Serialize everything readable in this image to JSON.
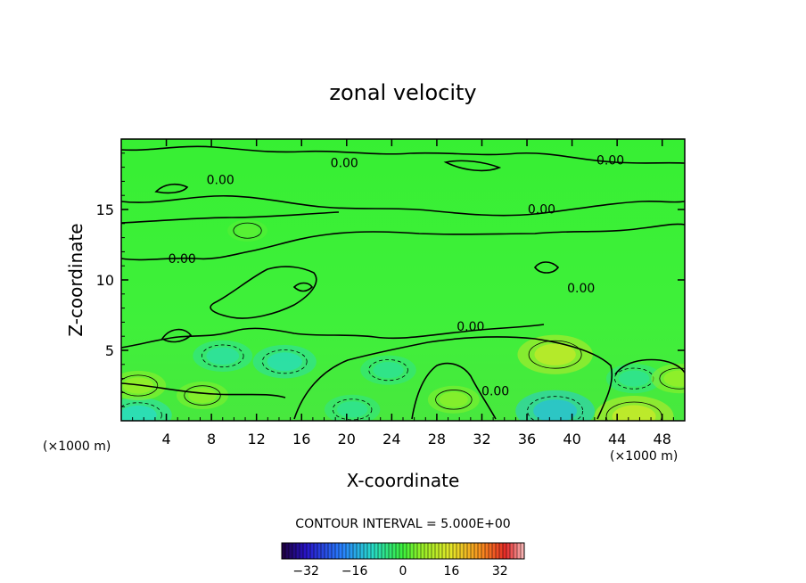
{
  "chart_data": {
    "type": "heatmap",
    "title": "zonal velocity",
    "xlabel": "X-coordinate",
    "ylabel": "Z-coordinate",
    "x_unit_left": "(×1000 m)",
    "x_unit_right": "(×1000 m)",
    "xlim": [
      0,
      50
    ],
    "ylim": [
      0,
      20
    ],
    "x_ticks": [
      4,
      8,
      12,
      16,
      20,
      24,
      28,
      32,
      36,
      40,
      44,
      48
    ],
    "y_ticks": [
      5,
      10,
      15
    ],
    "contour_interval_label": "CONTOUR INTERVAL = 5.000E+00",
    "contour_labels": [
      {
        "text": "0.00",
        "x": 19.8,
        "y": 18.0
      },
      {
        "text": "0.00",
        "x": 8.8,
        "y": 16.8
      },
      {
        "text": "0.00",
        "x": 43.4,
        "y": 18.2
      },
      {
        "text": "0.00",
        "x": 37.3,
        "y": 14.7
      },
      {
        "text": "0.00",
        "x": 5.4,
        "y": 11.2
      },
      {
        "text": "0.00",
        "x": 40.8,
        "y": 9.1
      },
      {
        "text": "0.00",
        "x": 31.0,
        "y": 6.4
      },
      {
        "text": "0.00",
        "x": 33.2,
        "y": 1.8
      }
    ],
    "colorbar": {
      "min": -40,
      "max": 40,
      "ticks": [
        -32,
        -16,
        0,
        16,
        32
      ],
      "tick_labels": [
        "−32",
        "−16",
        "0",
        "16",
        "32"
      ]
    },
    "features": [
      {
        "kind": "neg",
        "x": 9,
        "y": 4.6,
        "value": -7
      },
      {
        "kind": "neg",
        "x": 14.5,
        "y": 4.2,
        "value": -8
      },
      {
        "kind": "neg",
        "x": 23.7,
        "y": 3.6,
        "value": -6
      },
      {
        "kind": "neg",
        "x": 38.5,
        "y": 0.7,
        "value": -12
      },
      {
        "kind": "neg",
        "x": 1.5,
        "y": 0.4,
        "value": -9
      },
      {
        "kind": "neg",
        "x": 20.5,
        "y": 0.8,
        "value": -6
      },
      {
        "kind": "neg",
        "x": 45.5,
        "y": 3.0,
        "value": -6
      },
      {
        "kind": "pos",
        "x": 38.5,
        "y": 4.7,
        "value": 11
      },
      {
        "kind": "pos",
        "x": 1.5,
        "y": 2.5,
        "value": 6
      },
      {
        "kind": "pos",
        "x": 7.2,
        "y": 1.8,
        "value": 5
      },
      {
        "kind": "pos",
        "x": 29.5,
        "y": 1.5,
        "value": 5
      },
      {
        "kind": "pos",
        "x": 45.5,
        "y": 0.3,
        "value": 12
      },
      {
        "kind": "pos",
        "x": 49.5,
        "y": 3.0,
        "value": 6
      },
      {
        "kind": "pos",
        "x": 11.2,
        "y": 13.5,
        "value": 2
      }
    ]
  }
}
